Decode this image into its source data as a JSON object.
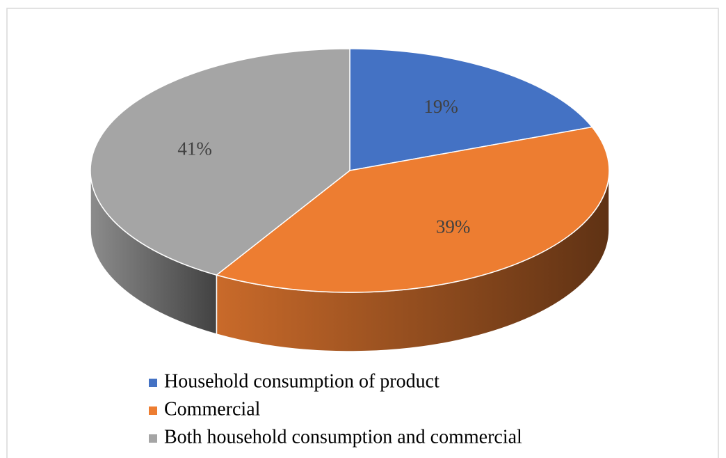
{
  "chart_data": {
    "type": "pie",
    "categories": [
      "Household consumption of product",
      "Commercial",
      "Both household consumption and commercial"
    ],
    "values": [
      19,
      39,
      41
    ],
    "value_labels": [
      "19%",
      "39%",
      "41%"
    ],
    "colors": [
      "#4472c4",
      "#ed7d31",
      "#a5a5a5"
    ],
    "legend": "bottom"
  }
}
